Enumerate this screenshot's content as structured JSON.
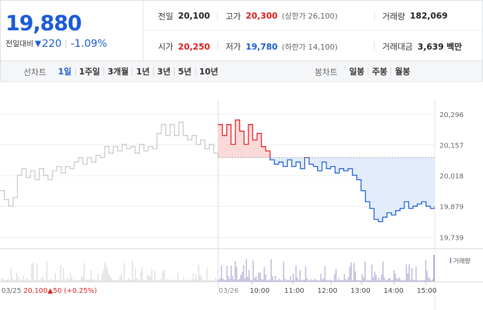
{
  "quote": {
    "current_price": "19,880",
    "change_label": "전일대비",
    "change_arrow": "▼",
    "change_value": "220",
    "change_rate": "-1.09%"
  },
  "stats": {
    "prev_close_label": "전일",
    "prev_close": "20,100",
    "high_label": "고가",
    "high": "20,300",
    "upper_limit": "(상한가 26,100)",
    "volume_label": "거래량",
    "volume": "182,069",
    "open_label": "시가",
    "open": "20,250",
    "low_label": "저가",
    "low": "19,780",
    "lower_limit": "(하한가 14,100)",
    "amount_label": "거래대금",
    "amount": "3,639 백만"
  },
  "line_tabs": {
    "title": "선차트",
    "items": [
      "1일",
      "1주일",
      "3개월",
      "1년",
      "3년",
      "5년",
      "10년"
    ],
    "active": "1일"
  },
  "candle_tabs": {
    "title": "봉차트",
    "items": [
      "일봉",
      "주봉",
      "월봉"
    ]
  },
  "chart_data": {
    "type": "line",
    "prev_close": 20100,
    "ylim": [
      19700,
      20330
    ],
    "y_ticks": [
      20296,
      20157,
      20018,
      19879,
      19739
    ],
    "y_tick_labels": [
      "20,296",
      "20,157",
      "20,018",
      "19,879",
      "19,739"
    ],
    "x_labels": [
      "03/26",
      "10:00",
      "11:00",
      "12:00",
      "13:00",
      "14:00",
      "15:00"
    ],
    "prev_day_label": "03/25",
    "prev_day_close": "20,100",
    "prev_day_change": "▲50 (+0.25%)",
    "volume_legend": "거래량",
    "prev_day_series": {
      "time": [
        0,
        2,
        4,
        6,
        8,
        10,
        12,
        14,
        16,
        18,
        20,
        22,
        24,
        26,
        28,
        30,
        32,
        34,
        36,
        38,
        40,
        42,
        44,
        46,
        48,
        50,
        52,
        54,
        56,
        58,
        60,
        62,
        64,
        66,
        68,
        70,
        72,
        74,
        76,
        78,
        80,
        82,
        84,
        86,
        88,
        90,
        92,
        94,
        96,
        98,
        100
      ],
      "price": [
        19950,
        19910,
        19880,
        19920,
        20020,
        20050,
        20010,
        20040,
        20000,
        20050,
        20020,
        20000,
        20040,
        20060,
        20030,
        20060,
        20050,
        20080,
        20100,
        20070,
        20100,
        20080,
        20110,
        20100,
        20150,
        20120,
        20150,
        20130,
        20160,
        20140,
        20150,
        20120,
        20160,
        20130,
        20150,
        20140,
        20210,
        20250,
        20200,
        20250,
        20200,
        20260,
        20200,
        20180,
        20200,
        20160,
        20180,
        20140,
        20160,
        20120,
        20100
      ]
    },
    "today_series": {
      "time": [
        0,
        2,
        4,
        6,
        8,
        10,
        12,
        14,
        16,
        18,
        20,
        22,
        24,
        26,
        28,
        30,
        32,
        34,
        36,
        38,
        40,
        42,
        44,
        46,
        48,
        50,
        52,
        54,
        56,
        58,
        60,
        62,
        64,
        66,
        68,
        70,
        72,
        74,
        76,
        78,
        80,
        82,
        84,
        86,
        88,
        90,
        92,
        94,
        96,
        98,
        100
      ],
      "price": [
        20250,
        20200,
        20250,
        20160,
        20270,
        20220,
        20160,
        20250,
        20180,
        20210,
        20150,
        20130,
        20090,
        20070,
        20080,
        20060,
        20090,
        20060,
        20080,
        20050,
        20100,
        20070,
        20060,
        20040,
        20080,
        20050,
        20060,
        20030,
        20050,
        20040,
        20050,
        20020,
        20000,
        19950,
        19900,
        19870,
        19820,
        19810,
        19830,
        19850,
        19840,
        19860,
        19870,
        19900,
        19870,
        19880,
        19890,
        19900,
        19880,
        19870,
        19880
      ]
    }
  },
  "colors": {
    "up": "#e01b1b",
    "down": "#1b5bd6",
    "prev_line": "#c8c8c8",
    "volume": "#9a8ec7"
  }
}
